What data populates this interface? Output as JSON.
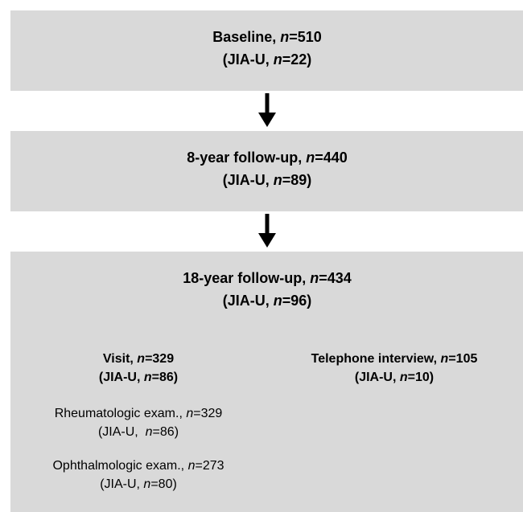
{
  "blocks": [
    {
      "lines": [
        [
          "Baseline, ",
          "n",
          "=510"
        ],
        [
          "(JIA-U, ",
          "n",
          "=22)"
        ]
      ]
    },
    {
      "lines": [
        [
          "8-year follow-up, ",
          "n",
          "=440"
        ],
        [
          "(JIA-U, ",
          "n",
          "=89)"
        ]
      ]
    },
    {
      "lines": [
        [
          "18-year follow-up, ",
          "n",
          "=434"
        ],
        [
          "(JIA-U, ",
          "n",
          "=96)"
        ]
      ]
    },
    {
      "lines": [
        [
          "Visit, ",
          "n",
          "=329"
        ],
        [
          "(JIA-U, ",
          "n",
          "=86)"
        ]
      ]
    },
    {
      "lines": [
        [
          "Telephone interview, ",
          "n",
          "=105"
        ],
        [
          "(JIA-U, ",
          "n",
          "=10)"
        ]
      ]
    },
    {
      "lines": [
        [
          "Rheumatologic exam., ",
          "n",
          "=329"
        ],
        [
          "(JIA-U,  ",
          "n",
          "=86)"
        ]
      ]
    },
    {
      "lines": [
        [
          "Ophthalmologic exam., ",
          "n",
          "=273"
        ],
        [
          "(JIA-U, ",
          "n",
          "=80)"
        ]
      ]
    }
  ]
}
